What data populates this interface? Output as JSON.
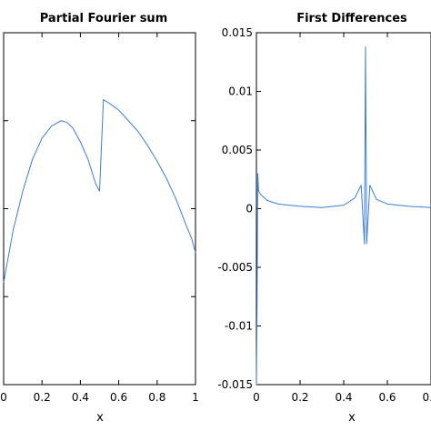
{
  "colors": {
    "line": "#3a7fd5",
    "axes": "#000000",
    "background": "#ffffff"
  },
  "chart_data": [
    {
      "type": "line",
      "title": "Partial Fourier sum",
      "xlabel": "x",
      "ylabel": "",
      "xlim": [
        0,
        1
      ],
      "ylim": [
        -0.5,
        1.5
      ],
      "xticks": [
        0,
        0.2,
        0.4,
        0.6,
        0.8,
        1
      ],
      "xtick_labels": [
        "0",
        "0.2",
        "0.4",
        "0.6",
        "0.8",
        "1"
      ],
      "yticks": [
        -0.5,
        0,
        0.5,
        1,
        1.5
      ],
      "grid": false,
      "legend": "none",
      "series": [
        {
          "x": [
            0,
            0.02,
            0.05,
            0.1,
            0.15,
            0.2,
            0.25,
            0.3,
            0.33,
            0.36,
            0.4,
            0.44,
            0.48,
            0.5,
            0.52,
            0.55,
            0.6,
            0.65,
            0.7,
            0.75,
            0.8,
            0.85,
            0.9,
            0.95,
            0.98,
            1.0
          ],
          "y": [
            0.08,
            0.2,
            0.38,
            0.6,
            0.78,
            0.9,
            0.97,
            1.0,
            0.99,
            0.96,
            0.88,
            0.78,
            0.64,
            0.6,
            1.12,
            1.1,
            1.06,
            1.0,
            0.94,
            0.86,
            0.77,
            0.67,
            0.55,
            0.41,
            0.33,
            0.25
          ]
        }
      ]
    },
    {
      "type": "line",
      "title": "First Differences",
      "xlabel": "x",
      "ylabel": "",
      "xlim": [
        0,
        1
      ],
      "ylim": [
        -0.015,
        0.015
      ],
      "xticks": [
        0,
        0.2,
        0.4,
        0.6,
        0.8
      ],
      "xtick_labels": [
        "0",
        "0.2",
        "0.4",
        "0.6",
        "0.8"
      ],
      "yticks": [
        -0.015,
        -0.01,
        -0.005,
        0,
        0.005,
        0.01,
        0.015
      ],
      "ytick_labels": [
        "-0.015",
        "-0.01",
        "-0.005",
        "0",
        "0.005",
        "0.01",
        "0.015"
      ],
      "grid": false,
      "legend": "none",
      "series": [
        {
          "x": [
            0,
            0.003,
            0.006,
            0.01,
            0.02,
            0.05,
            0.1,
            0.2,
            0.3,
            0.4,
            0.45,
            0.48,
            0.495,
            0.5,
            0.505,
            0.52,
            0.55,
            0.6,
            0.7,
            0.8,
            0.9,
            0.95,
            0.99
          ],
          "y": [
            -0.015,
            -0.008,
            0.003,
            0.0015,
            0.0012,
            0.0007,
            0.0004,
            0.0002,
            0.0001,
            0.0003,
            0.0009,
            0.002,
            -0.003,
            0.0138,
            -0.003,
            0.002,
            0.0008,
            0.0004,
            0.0002,
            0.0001,
            0.0,
            0.0001,
            0.0003
          ]
        }
      ]
    }
  ]
}
